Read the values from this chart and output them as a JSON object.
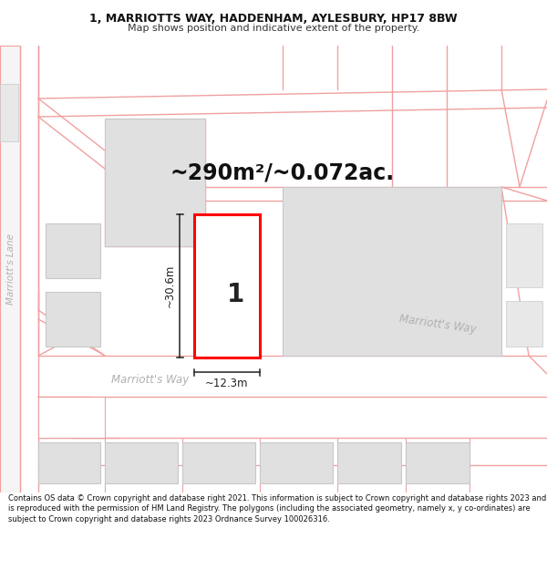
{
  "title_line1": "1, MARRIOTTS WAY, HADDENHAM, AYLESBURY, HP17 8BW",
  "title_line2": "Map shows position and indicative extent of the property.",
  "area_text": "~290m²/~0.072ac.",
  "width_label": "~12.3m",
  "height_label": "~30.6m",
  "plot_number": "1",
  "road_label_left": "Marriott's Way",
  "road_label_right": "Marriott's Way",
  "lane_label": "Marriott's Lane",
  "footer_text": "Contains OS data © Crown copyright and database right 2021. This information is subject to Crown copyright and database rights 2023 and is reproduced with the permission of HM Land Registry. The polygons (including the associated geometry, namely x, y co-ordinates) are subject to Crown copyright and database rights 2023 Ordnance Survey 100026316.",
  "bg_color": "#ffffff",
  "map_bg": "#ffffff",
  "road_line_color": "#f0a0a0",
  "building_fill": "#e0e0e0",
  "building_edge": "#c8c8c8",
  "highlight_color": "#ff0000",
  "road_text_color": "#b0b0b0",
  "lane_text_color": "#b0b0b0",
  "dim_line_color": "#222222",
  "text_color": "#111111"
}
